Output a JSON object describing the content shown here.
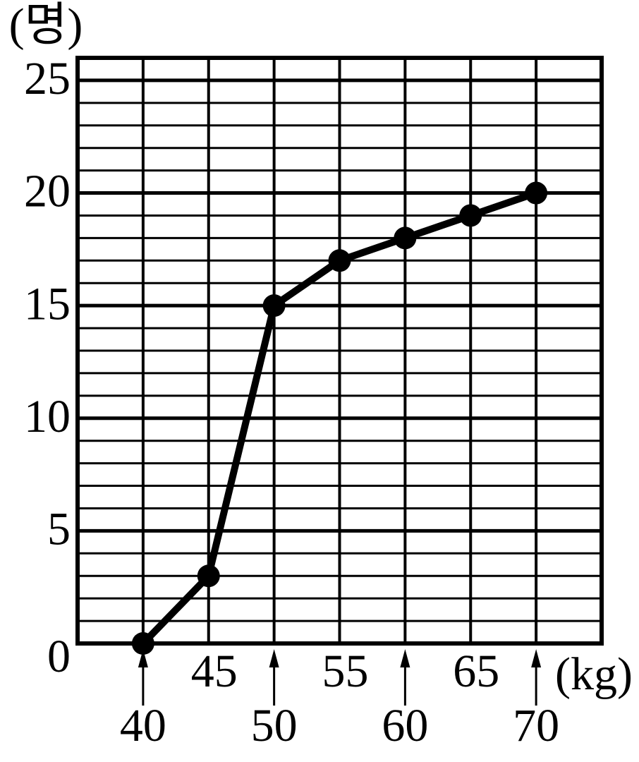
{
  "chart_data": {
    "type": "line",
    "y_label": "(명)",
    "x_label": "(kg)",
    "x": [
      40,
      45,
      50,
      55,
      60,
      65,
      70
    ],
    "values": [
      0,
      3,
      15,
      17,
      18,
      19,
      20
    ],
    "color": "#000000",
    "xlim": [
      35,
      75
    ],
    "xticks": [
      40,
      45,
      50,
      55,
      60,
      65,
      70
    ],
    "ylim": [
      0,
      26
    ],
    "yticks": [
      0,
      5,
      10,
      15,
      20,
      25
    ],
    "grid": true,
    "minor_grid_step": 1
  }
}
